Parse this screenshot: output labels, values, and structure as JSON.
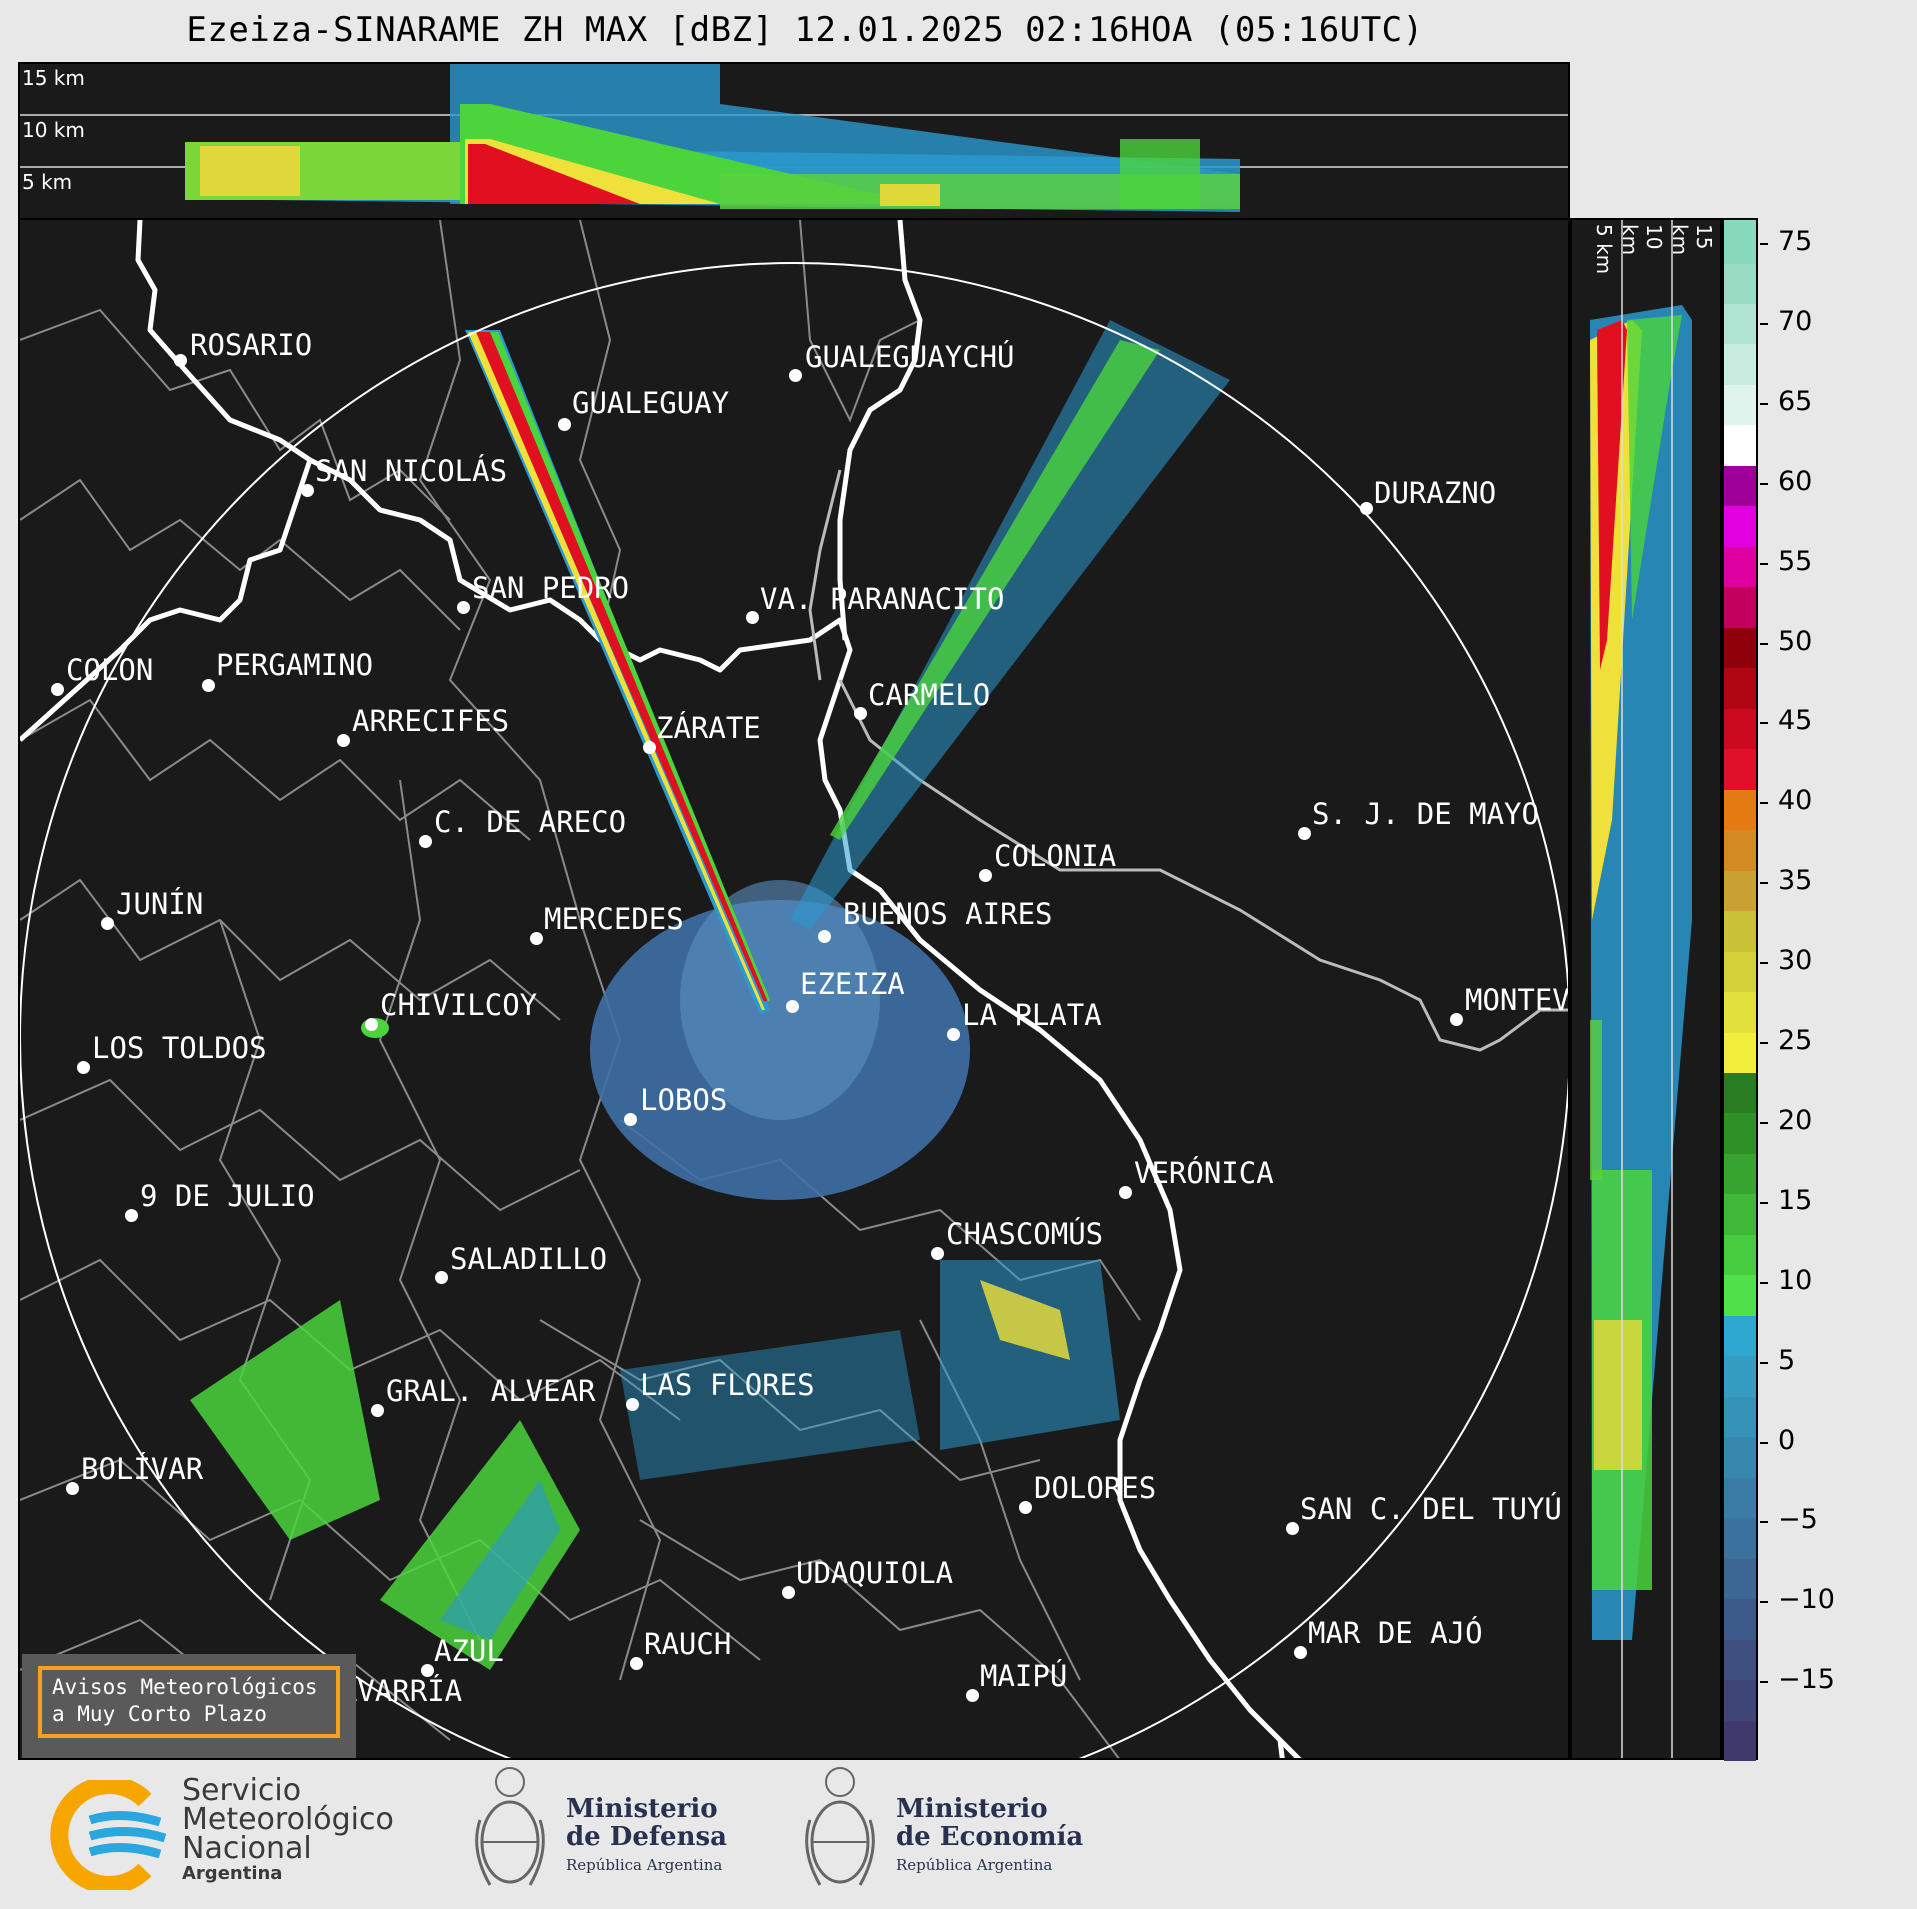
{
  "header": {
    "title": "Ezeiza-SINARAME ZH MAX [dBZ] 12.01.2025 02:16HOA (05:16UTC)"
  },
  "top_profile": {
    "labels": [
      "15 km",
      "10 km",
      "5 km"
    ]
  },
  "side_profile": {
    "labels": [
      "5 km",
      "10 km",
      "15 km"
    ]
  },
  "colorbar": {
    "ticks": [
      "75",
      "70",
      "65",
      "60",
      "55",
      "50",
      "45",
      "40",
      "35",
      "30",
      "25",
      "20",
      "15",
      "10",
      "5",
      "0",
      "−5",
      "−10",
      "−15"
    ]
  },
  "cities": [
    {
      "name": "ROSARIO"
    },
    {
      "name": "GUALEGUAYCHÚ"
    },
    {
      "name": "GUALEGUAY"
    },
    {
      "name": "SAN NICOLÁS"
    },
    {
      "name": "DURAZNO"
    },
    {
      "name": "SAN PEDRO"
    },
    {
      "name": "VA. PARANACITO"
    },
    {
      "name": "COLON"
    },
    {
      "name": "PERGAMINO"
    },
    {
      "name": "CARMELO"
    },
    {
      "name": "ARRECIFES"
    },
    {
      "name": "ZÁRATE"
    },
    {
      "name": "S. J. DE MAYO"
    },
    {
      "name": "C. DE ARECO"
    },
    {
      "name": "COLONIA"
    },
    {
      "name": "JUNÍN"
    },
    {
      "name": "BUENOS AIRES"
    },
    {
      "name": "MERCEDES"
    },
    {
      "name": "EZEIZA"
    },
    {
      "name": "MONTEVIDEO"
    },
    {
      "name": "CHIVILCOY"
    },
    {
      "name": "LA PLATA"
    },
    {
      "name": "LOS TOLDOS"
    },
    {
      "name": "LOBOS"
    },
    {
      "name": "VERÓNICA"
    },
    {
      "name": "9 DE JULIO"
    },
    {
      "name": "CHASCOMÚS"
    },
    {
      "name": "SALADILLO"
    },
    {
      "name": "GRAL. ALVEAR"
    },
    {
      "name": "LAS FLORES"
    },
    {
      "name": "BOLÍVAR"
    },
    {
      "name": "DOLORES"
    },
    {
      "name": "SAN C. DEL TUYÚ"
    },
    {
      "name": "UDAQUIOLA"
    },
    {
      "name": "AZUL"
    },
    {
      "name": "RAUCH"
    },
    {
      "name": "MAR DE AJÓ"
    },
    {
      "name": "OLAVARRÍA"
    },
    {
      "name": "MAIPÚ"
    }
  ],
  "notice": {
    "line1": "Avisos Meteorológicos",
    "line2": "a Muy Corto Plazo"
  },
  "footer": {
    "smn": {
      "line1": "Servicio",
      "line2": "Meteorológico",
      "line3": "Nacional",
      "line4": "Argentina"
    },
    "defensa": {
      "line1": "Ministerio",
      "line2": "de Defensa",
      "sub": "República Argentina"
    },
    "economia": {
      "line1": "Ministerio",
      "line2": "de Economía",
      "sub": "República Argentina"
    }
  },
  "colors": {
    "map_bg": "#1a1a1a",
    "accent": "#f5a11a",
    "smn_blue": "#2aa7df",
    "smn_orange": "#f7a600"
  }
}
